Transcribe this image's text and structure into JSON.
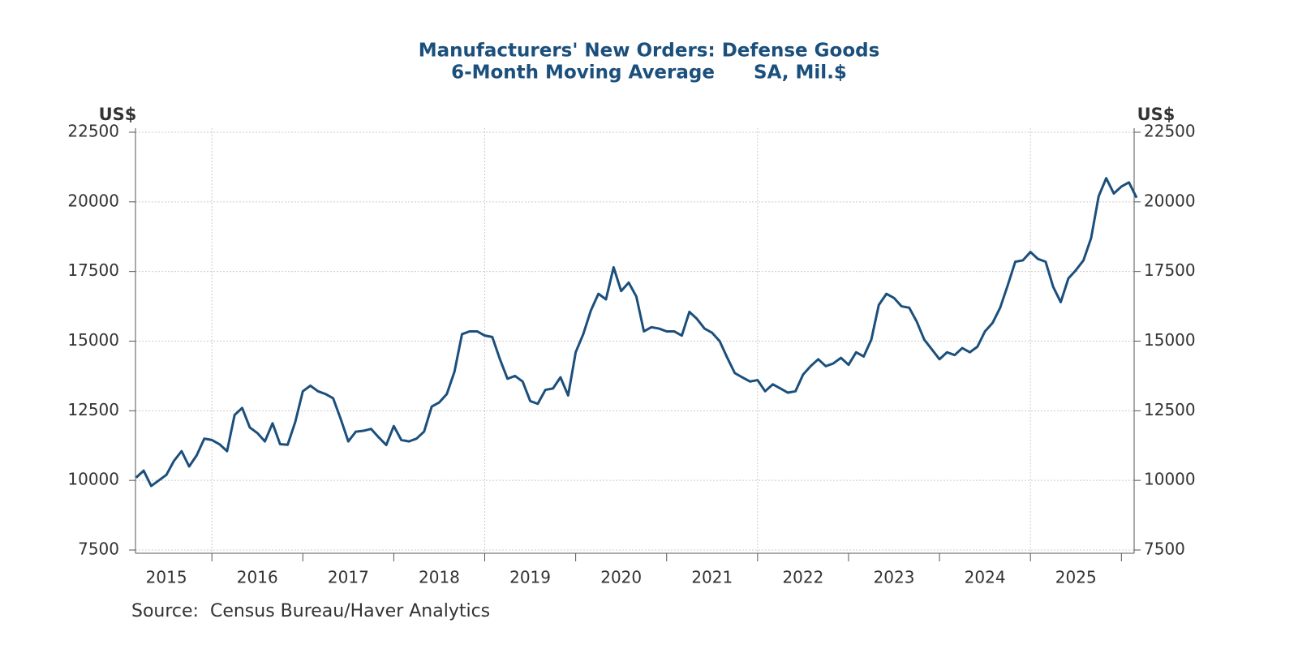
{
  "chart_data": {
    "type": "line",
    "title": "Manufacturers' New Orders: Defense Goods",
    "subtitle": "6-Month Moving Average      SA, Mil.$",
    "y_label": "US$",
    "y2_label": "US$",
    "source": "Source:  Census Bureau/Haver Analytics",
    "x": [
      2015.167,
      2015.25,
      2015.333,
      2015.417,
      2015.5,
      2015.583,
      2015.667,
      2015.75,
      2015.833,
      2015.917,
      2016,
      2016.083,
      2016.167,
      2016.25,
      2016.333,
      2016.417,
      2016.5,
      2016.583,
      2016.667,
      2016.75,
      2016.833,
      2016.917,
      2017,
      2017.083,
      2017.167,
      2017.25,
      2017.333,
      2017.417,
      2017.5,
      2017.583,
      2017.667,
      2017.75,
      2017.833,
      2017.917,
      2018,
      2018.083,
      2018.167,
      2018.25,
      2018.333,
      2018.417,
      2018.5,
      2018.583,
      2018.667,
      2018.75,
      2018.833,
      2018.917,
      2019,
      2019.083,
      2019.167,
      2019.25,
      2019.333,
      2019.417,
      2019.5,
      2019.583,
      2019.667,
      2019.75,
      2019.833,
      2019.917,
      2020,
      2020.083,
      2020.167,
      2020.25,
      2020.333,
      2020.417,
      2020.5,
      2020.583,
      2020.667,
      2020.75,
      2020.833,
      2020.917,
      2021,
      2021.083,
      2021.167,
      2021.25,
      2021.333,
      2021.417,
      2021.5,
      2021.583,
      2021.667,
      2021.75,
      2021.833,
      2021.917,
      2022,
      2022.083,
      2022.167,
      2022.25,
      2022.333,
      2022.417,
      2022.5,
      2022.583,
      2022.667,
      2022.75,
      2022.833,
      2022.917,
      2023,
      2023.083,
      2023.167,
      2023.25,
      2023.333,
      2023.417,
      2023.5,
      2023.583,
      2023.667,
      2023.75,
      2023.833,
      2023.917,
      2024,
      2024.083,
      2024.167,
      2024.25,
      2024.333,
      2024.417,
      2024.5,
      2024.583,
      2024.667,
      2024.75,
      2024.833,
      2024.917,
      2025,
      2025.083,
      2025.167,
      2025.25,
      2025.333,
      2025.417,
      2025.5,
      2025.583,
      2025.667,
      2025.75,
      2025.833,
      2025.917,
      2026,
      2026.083,
      2026.167
    ],
    "series": [
      {
        "color": "#1b4f7c",
        "values": [
          10100,
          10350,
          9800,
          10000,
          10200,
          10700,
          11050,
          10500,
          10900,
          11500,
          11450,
          11300,
          11050,
          12350,
          12600,
          11900,
          11700,
          11400,
          12050,
          11300,
          11280,
          12100,
          13200,
          13400,
          13200,
          13100,
          12950,
          12200,
          11400,
          11750,
          11780,
          11850,
          11550,
          11270,
          11950,
          11450,
          11400,
          11500,
          11750,
          12650,
          12800,
          13100,
          13900,
          15250,
          15350,
          15350,
          15200,
          15150,
          14350,
          13650,
          13750,
          13550,
          12850,
          12750,
          13250,
          13300,
          13700,
          13050,
          14600,
          15250,
          16100,
          16700,
          16500,
          17650,
          16800,
          17100,
          16600,
          15350,
          15500,
          15450,
          15350,
          15350,
          15200,
          16050,
          15800,
          15450,
          15300,
          15000,
          14400,
          13850,
          13700,
          13550,
          13600,
          13200,
          13450,
          13300,
          13150,
          13200,
          13800,
          14100,
          14350,
          14100,
          14200,
          14400,
          14150,
          14600,
          14450,
          15050,
          16300,
          16700,
          16550,
          16250,
          16200,
          15700,
          15050,
          14700,
          14350,
          14600,
          14500,
          14750,
          14600,
          14800,
          15350,
          15650,
          16200,
          17000,
          17850,
          17900,
          18200,
          17950,
          17850,
          16950,
          16400,
          17250,
          17550,
          17900,
          18700,
          20200,
          20850,
          20300,
          20550,
          20700,
          20150
        ]
      }
    ],
    "xlim": [
      2015.16,
      2026.14
    ],
    "xticks": [
      2016,
      2017,
      2018,
      2019,
      2020,
      2021,
      2022,
      2023,
      2024,
      2025,
      2026
    ],
    "x_grid": [
      2016,
      2019,
      2022,
      2025
    ],
    "xtick_labels": [
      {
        "value": 2015.5,
        "label": "2015"
      },
      {
        "value": 2016.5,
        "label": "2016"
      },
      {
        "value": 2017.5,
        "label": "2017"
      },
      {
        "value": 2018.5,
        "label": "2018"
      },
      {
        "value": 2019.5,
        "label": "2019"
      },
      {
        "value": 2020.5,
        "label": "2020"
      },
      {
        "value": 2021.5,
        "label": "2021"
      },
      {
        "value": 2022.5,
        "label": "2022"
      },
      {
        "value": 2023.5,
        "label": "2023"
      },
      {
        "value": 2024.5,
        "label": "2024"
      },
      {
        "value": 2025.5,
        "label": "2025"
      }
    ],
    "ylim": [
      7500,
      22500
    ],
    "yticks": [
      7500,
      10000,
      12500,
      15000,
      17500,
      20000,
      22500
    ],
    "y2lim": [
      7500,
      22500
    ],
    "y2ticks": [
      7500,
      10000,
      12500,
      15000,
      17500,
      20000,
      22500
    ],
    "grid": true
  }
}
